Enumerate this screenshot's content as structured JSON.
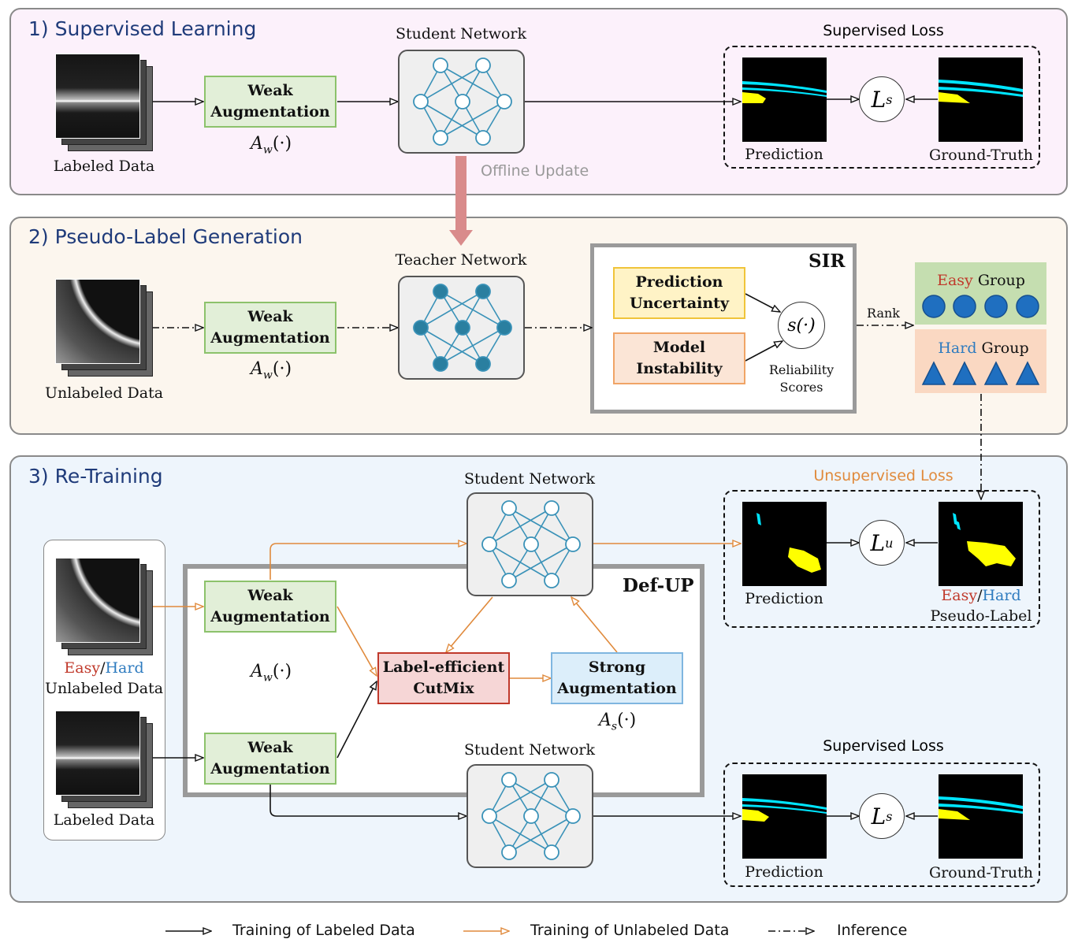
{
  "panels": {
    "supervised": {
      "title": "1) Supervised Learning"
    },
    "pseudo": {
      "title": "2) Pseudo-Label Generation"
    },
    "retrain": {
      "title": "3) Re-Training"
    }
  },
  "labels": {
    "labeled_data": "Labeled Data",
    "unlabeled_data": "Unlabeled Data",
    "student_network": "Student Network",
    "teacher_network": "Teacher Network",
    "offline_update": "Offline Update",
    "weak_aug_line1": "Weak",
    "weak_aug_line2": "Augmentation",
    "aw": "A",
    "aw_sub": "w",
    "as_sub": "s",
    "dot_arg": "(·)",
    "supervised_loss": "Supervised Loss",
    "unsupervised_loss": "Unsupervised Loss",
    "prediction": "Prediction",
    "ground_truth": "Ground-Truth",
    "pseudo_label": "Pseudo-Label",
    "loss_L": "L",
    "loss_s": "s",
    "loss_u": "u",
    "sir": "SIR",
    "pred_uncert_1": "Prediction",
    "pred_uncert_2": "Uncertainty",
    "model_inst_1": "Model",
    "model_inst_2": "Instability",
    "s_func": "s(·)",
    "reliability_1": "Reliability",
    "reliability_2": "Scores",
    "rank": "Rank",
    "easy": "Easy",
    "hard": "Hard",
    "group": " Group",
    "slash": "/",
    "defup": "Def-UP",
    "cutmix_1": "Label-efficient",
    "cutmix_2": "CutMix",
    "strong_1": "Strong",
    "strong_2": "Augmentation"
  },
  "legend": {
    "labeled": "Training of Labeled Data",
    "unlabeled": "Training of Unlabeled Data",
    "inference": "Inference"
  },
  "colors": {
    "orange": "#e08a3c",
    "red": "#c0392b",
    "blue": "#2e7bbf",
    "node_fill": "#2a7fa0",
    "node_stroke": "#3a92b8"
  }
}
